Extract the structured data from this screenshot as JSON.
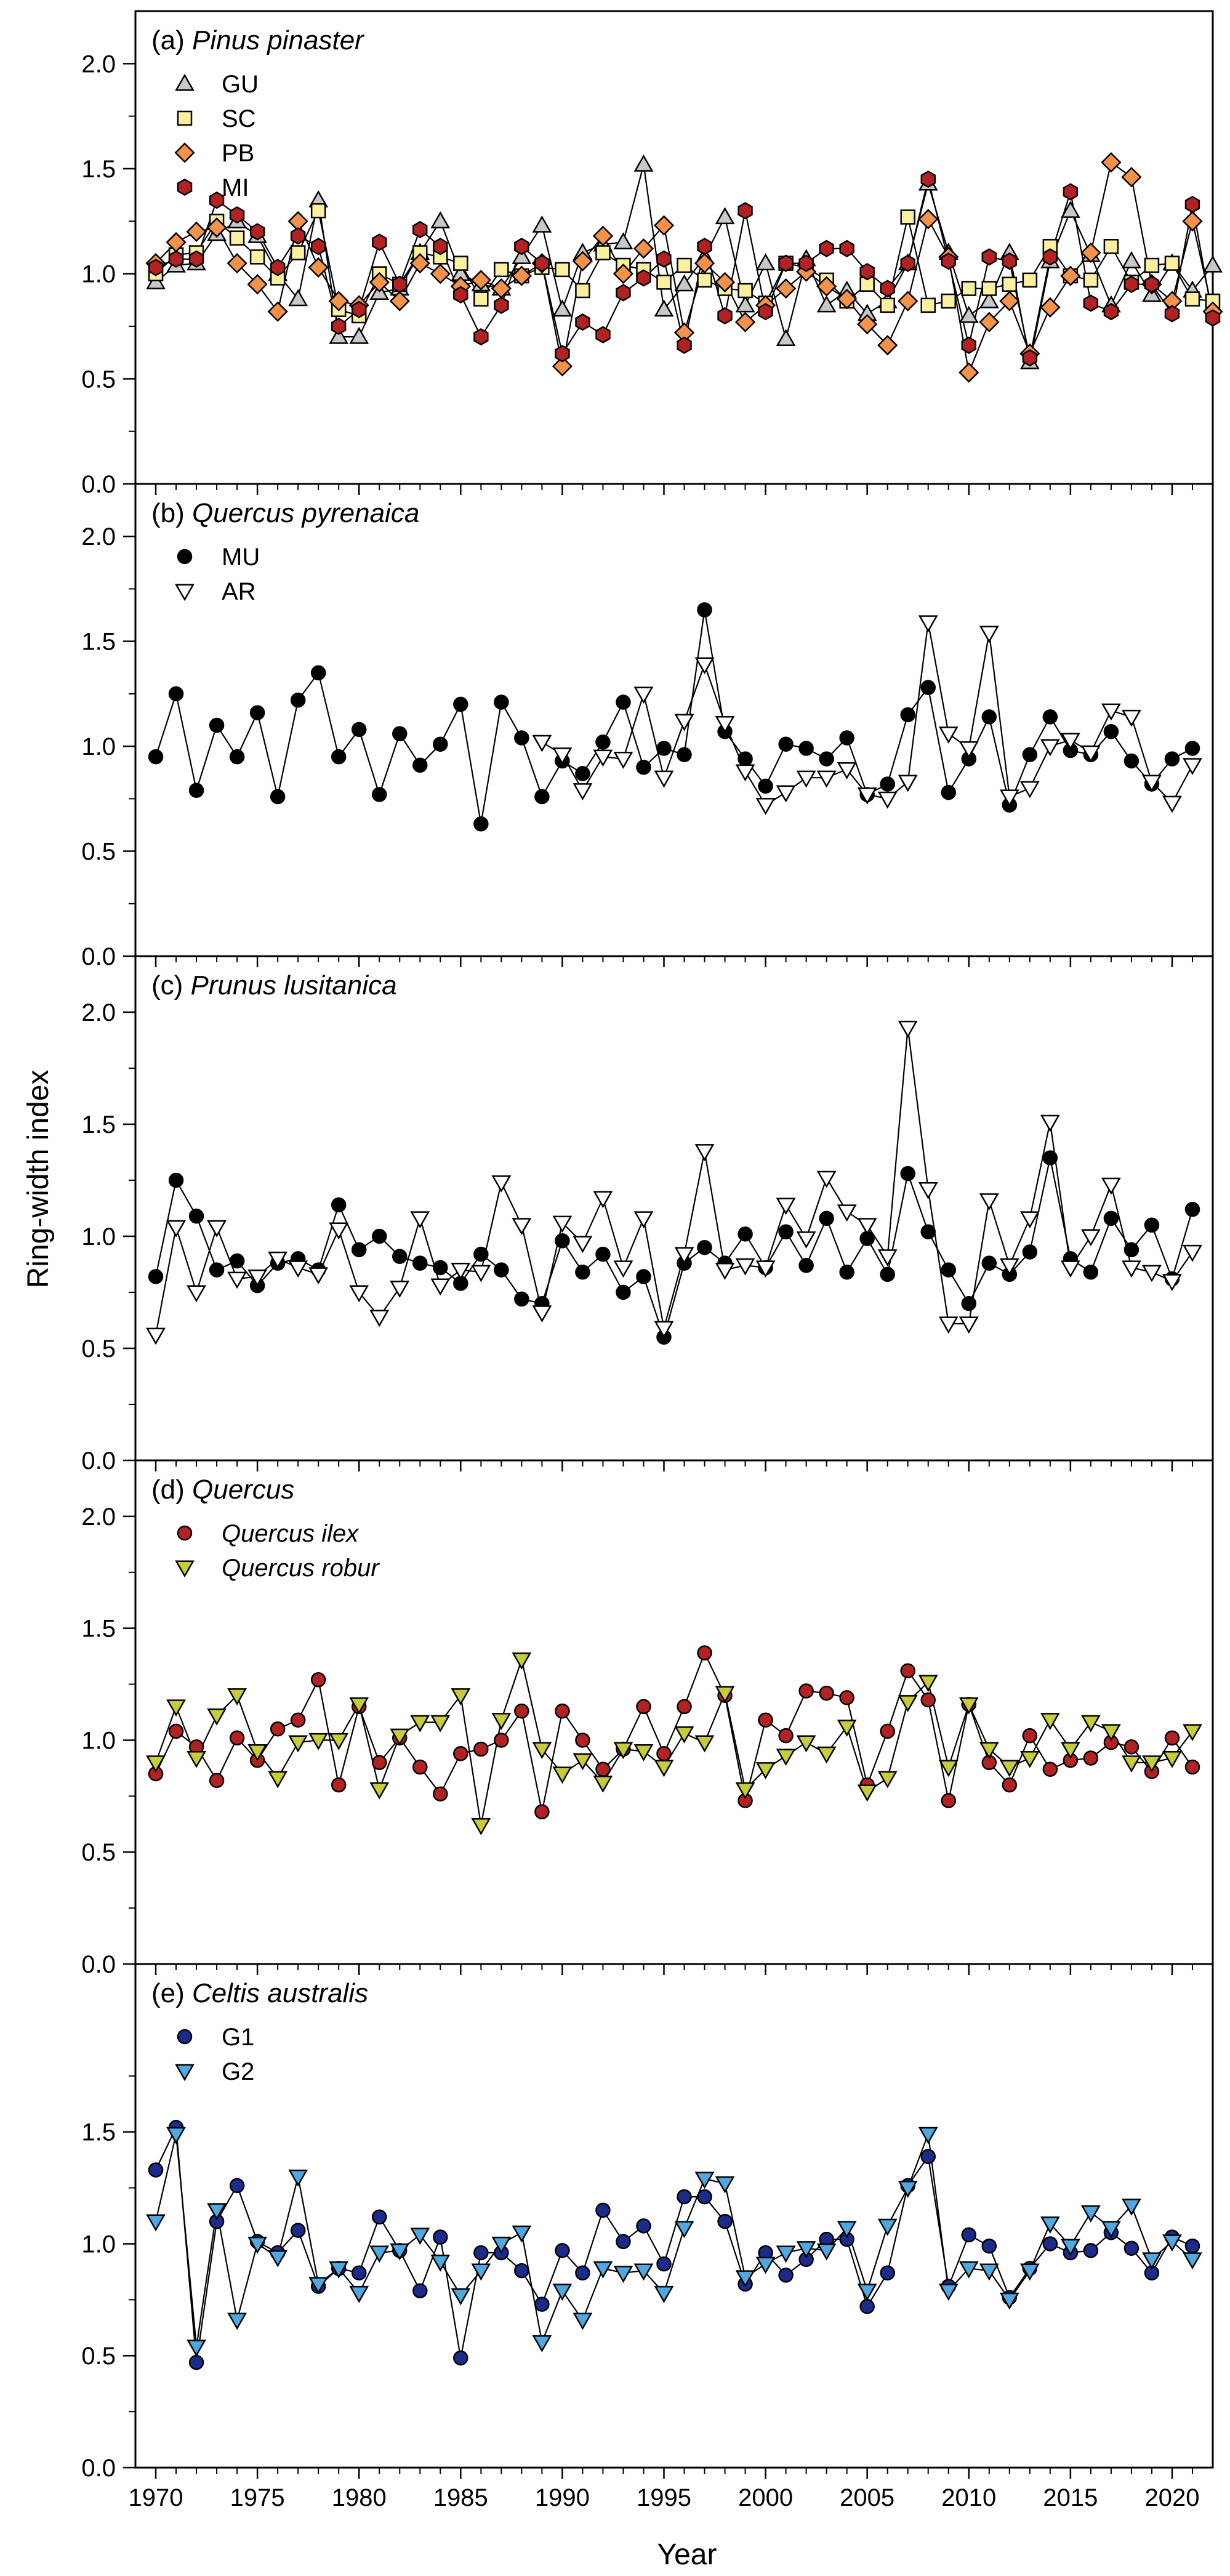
{
  "figure": {
    "ylabel": "Ring-width index",
    "xlabel": "Year"
  },
  "chart_data": [
    {
      "type": "line",
      "title_prefix": "(a)",
      "title_species": "Pinus pinaster",
      "ylim": [
        0,
        2.25
      ],
      "yticks": [
        "0.0",
        "0.5",
        "1.0",
        "1.5",
        "2.0"
      ],
      "xlim": [
        1969,
        2022
      ],
      "xticks": [
        "1970",
        "1975",
        "1980",
        "1985",
        "1990",
        "1995",
        "2000",
        "2005",
        "2010",
        "2015",
        "2020"
      ],
      "legend_position": "top-left",
      "series": [
        {
          "name": "GU",
          "marker": "triangle-up",
          "color": "#c8c8c8",
          "italic": false,
          "start": 1970,
          "values": [
            0.96,
            1.04,
            1.05,
            1.19,
            1.25,
            1.18,
            1.0,
            0.88,
            1.35,
            0.7,
            0.7,
            0.91,
            0.93,
            1.1,
            1.25,
            1.0,
            0.95,
            0.93,
            1.08,
            1.23,
            0.83,
            1.1,
            1.14,
            1.15,
            1.52,
            0.83,
            0.95,
            1.08,
            1.27,
            0.85,
            1.05,
            0.69,
            1.07,
            0.85,
            0.92,
            0.81,
            0.87,
            1.05,
            1.43,
            1.1,
            0.8,
            0.87,
            1.1,
            0.58,
            1.06,
            1.3,
            1.09,
            0.85,
            1.06,
            0.9,
            1.05,
            0.92,
            1.04
          ]
        },
        {
          "name": "SC",
          "marker": "square",
          "color": "#fbf0a0",
          "italic": false,
          "start": 1970,
          "values": [
            1.0,
            1.09,
            1.1,
            1.25,
            1.17,
            1.08,
            0.98,
            1.1,
            1.3,
            0.83,
            0.8,
            1.0,
            0.95,
            1.1,
            1.08,
            1.05,
            0.88,
            1.02,
            0.99,
            1.03,
            1.02,
            0.92,
            1.1,
            1.04,
            1.02,
            0.96,
            1.04,
            0.97,
            0.93,
            0.92,
            0.86,
            1.05,
            1.03,
            0.97,
            0.87,
            0.95,
            0.85,
            1.27,
            0.85,
            0.87,
            0.93,
            0.93,
            0.95,
            0.97,
            1.13,
            0.99,
            0.97,
            1.13,
            0.96,
            1.04,
            1.05,
            0.88,
            0.87
          ]
        },
        {
          "name": "PB",
          "marker": "diamond",
          "color": "#f4924a",
          "italic": false,
          "start": 1970,
          "values": [
            1.05,
            1.15,
            1.2,
            1.22,
            1.05,
            0.95,
            0.82,
            1.25,
            1.03,
            0.87,
            0.85,
            0.96,
            0.87,
            1.05,
            1.0,
            0.94,
            0.97,
            0.93,
            0.99,
            1.05,
            0.56,
            1.06,
            1.18,
            1.0,
            1.12,
            1.23,
            0.72,
            1.05,
            0.96,
            0.77,
            0.85,
            0.93,
            1.01,
            0.94,
            0.88,
            0.76,
            0.66,
            0.87,
            1.26,
            1.08,
            0.53,
            0.77,
            0.87,
            0.62,
            0.84,
            0.99,
            1.1,
            1.53,
            1.46,
            0.95,
            0.87,
            1.25,
            0.82
          ]
        },
        {
          "name": "MI",
          "marker": "hexagon",
          "color": "#b22222",
          "italic": false,
          "start": 1970,
          "values": [
            1.03,
            1.07,
            1.07,
            1.35,
            1.28,
            1.2,
            1.03,
            1.18,
            1.13,
            0.75,
            0.83,
            1.15,
            0.95,
            1.21,
            1.13,
            0.9,
            0.7,
            0.85,
            1.13,
            1.05,
            0.62,
            0.77,
            0.71,
            0.91,
            0.98,
            1.07,
            0.66,
            1.13,
            0.8,
            1.3,
            0.82,
            1.05,
            1.05,
            1.12,
            1.12,
            1.01,
            0.93,
            1.05,
            1.45,
            1.06,
            0.66,
            1.08,
            1.06,
            0.6,
            1.08,
            1.39,
            0.86,
            0.82,
            0.95,
            0.95,
            0.81,
            1.33,
            0.79
          ]
        }
      ]
    },
    {
      "type": "line",
      "title_prefix": "(b)",
      "title_species": "Quercus pyrenaica",
      "ylim": [
        0,
        2.25
      ],
      "yticks": [
        "0.0",
        "0.5",
        "1.0",
        "1.5",
        "2.0"
      ],
      "xlim": [
        1969,
        2022
      ],
      "xticks": [
        "1970",
        "1975",
        "1980",
        "1985",
        "1990",
        "1995",
        "2000",
        "2005",
        "2010",
        "2015",
        "2020"
      ],
      "legend_position": "top-left",
      "series": [
        {
          "name": "MU",
          "marker": "circle",
          "color": "#000000",
          "italic": false,
          "start": 1970,
          "values": [
            0.95,
            1.25,
            0.79,
            1.1,
            0.95,
            1.16,
            0.76,
            1.22,
            1.35,
            0.95,
            1.08,
            0.77,
            1.06,
            0.91,
            1.01,
            1.2,
            0.63,
            1.21,
            1.04,
            0.76,
            0.93,
            0.87,
            1.02,
            1.21,
            0.9,
            0.99,
            0.96,
            1.65,
            1.07,
            0.94,
            0.81,
            1.01,
            0.99,
            0.94,
            1.04,
            0.77,
            0.82,
            1.15,
            1.28,
            0.78,
            0.94,
            1.14,
            0.72,
            0.96,
            1.14,
            0.98,
            0.96,
            1.07,
            0.93,
            0.82,
            0.94,
            0.99
          ]
        },
        {
          "name": "AR",
          "marker": "triangle-down",
          "color": "#ffffff",
          "italic": false,
          "start": 1989,
          "values": [
            1.02,
            0.96,
            0.79,
            0.95,
            0.94,
            1.25,
            0.85,
            1.12,
            1.39,
            1.11,
            0.88,
            0.72,
            0.78,
            0.85,
            0.85,
            0.89,
            0.77,
            0.75,
            0.83,
            1.59,
            1.06,
            0.99,
            1.54,
            0.76,
            0.8,
            1.0,
            1.03,
            0.97,
            1.17,
            1.14,
            0.83,
            0.73,
            0.91
          ]
        }
      ]
    },
    {
      "type": "line",
      "title_prefix": "(c)",
      "title_species": "Prunus lusitanica",
      "ylim": [
        0,
        2.25
      ],
      "yticks": [
        "0.0",
        "0.5",
        "1.0",
        "1.5",
        "2.0"
      ],
      "xlim": [
        1969,
        2022
      ],
      "xticks": [
        "1970",
        "1975",
        "1980",
        "1985",
        "1990",
        "1995",
        "2000",
        "2005",
        "2010",
        "2015",
        "2020"
      ],
      "legend_position": "none",
      "series": [
        {
          "name": "black circles",
          "marker": "circle",
          "color": "#000000",
          "italic": false,
          "start": 1970,
          "show_in_legend": false,
          "values": [
            0.82,
            1.25,
            1.09,
            0.85,
            0.89,
            0.78,
            0.88,
            0.9,
            0.85,
            1.14,
            0.94,
            1.0,
            0.91,
            0.88,
            0.86,
            0.79,
            0.92,
            0.85,
            0.72,
            0.7,
            0.98,
            0.84,
            0.92,
            0.75,
            0.82,
            0.55,
            0.88,
            0.95,
            0.88,
            1.01,
            0.86,
            1.02,
            0.87,
            1.08,
            0.84,
            0.99,
            0.83,
            1.28,
            1.02,
            0.85,
            0.7,
            0.88,
            0.83,
            0.93,
            1.35,
            0.9,
            0.84,
            1.08,
            0.94,
            1.05,
            0.81,
            1.12
          ]
        },
        {
          "name": "white triangles",
          "marker": "triangle-down",
          "color": "#ffffff",
          "italic": false,
          "start": 1970,
          "show_in_legend": false,
          "values": [
            0.56,
            1.04,
            0.75,
            1.04,
            0.81,
            0.82,
            0.9,
            0.86,
            0.83,
            1.03,
            0.75,
            0.64,
            0.77,
            1.08,
            0.78,
            0.85,
            0.84,
            1.24,
            1.05,
            0.66,
            1.06,
            0.97,
            1.17,
            0.86,
            1.08,
            0.59,
            0.92,
            1.38,
            0.85,
            0.87,
            0.86,
            1.14,
            0.99,
            1.26,
            1.11,
            1.05,
            0.91,
            1.93,
            1.21,
            0.61,
            0.61,
            1.16,
            0.87,
            1.08,
            1.51,
            0.86,
            1.0,
            1.23,
            0.86,
            0.84,
            0.8,
            0.93
          ]
        }
      ]
    },
    {
      "type": "line",
      "title_prefix": "(d)",
      "title_species": "Quercus",
      "ylim": [
        0,
        2.25
      ],
      "yticks": [
        "0.0",
        "0.5",
        "1.0",
        "1.5",
        "2.0"
      ],
      "xlim": [
        1969,
        2022
      ],
      "xticks": [
        "1970",
        "1975",
        "1980",
        "1985",
        "1990",
        "1995",
        "2000",
        "2005",
        "2010",
        "2015",
        "2020"
      ],
      "legend_position": "top-left",
      "series": [
        {
          "name": "Quercus ilex",
          "marker": "circle",
          "color": "#b22222",
          "italic": true,
          "start": 1970,
          "values": [
            0.85,
            1.04,
            0.97,
            0.82,
            1.01,
            0.91,
            1.05,
            1.09,
            1.27,
            0.8,
            1.15,
            0.9,
            1.01,
            0.88,
            0.76,
            0.94,
            0.96,
            1.0,
            1.13,
            0.68,
            1.13,
            1.0,
            0.87,
            0.96,
            1.15,
            0.94,
            1.15,
            1.39,
            1.2,
            0.73,
            1.09,
            1.02,
            1.22,
            1.21,
            1.19,
            0.8,
            1.04,
            1.31,
            1.18,
            0.73,
            1.16,
            0.9,
            0.8,
            1.02,
            0.87,
            0.91,
            0.92,
            0.99,
            0.97,
            0.86,
            1.01,
            0.88
          ]
        },
        {
          "name": "Quercus robur",
          "marker": "triangle-down",
          "color": "#c6cc3a",
          "italic": true,
          "start": 1970,
          "values": [
            0.9,
            1.15,
            0.92,
            1.11,
            1.2,
            0.95,
            0.83,
            0.99,
            1.0,
            1.0,
            1.16,
            0.78,
            1.02,
            1.08,
            1.08,
            1.2,
            0.62,
            1.09,
            1.36,
            0.96,
            0.85,
            0.91,
            0.81,
            0.96,
            0.95,
            0.88,
            1.03,
            0.99,
            1.21,
            0.78,
            0.87,
            0.93,
            0.99,
            0.94,
            1.06,
            0.77,
            0.83,
            1.17,
            1.26,
            0.88,
            1.16,
            0.96,
            0.88,
            0.92,
            1.09,
            0.96,
            1.08,
            1.04,
            0.9,
            0.9,
            0.92,
            1.04
          ]
        }
      ]
    },
    {
      "type": "line",
      "title_prefix": "(e)",
      "title_species": "Celtis australis",
      "ylim": [
        0,
        2.25
      ],
      "yticks": [
        "0.0",
        "0.5",
        "1.0",
        "1.5"
      ],
      "xlim": [
        1969,
        2022
      ],
      "xticks": [
        "1970",
        "1975",
        "1980",
        "1985",
        "1990",
        "1995",
        "2000",
        "2005",
        "2010",
        "2015",
        "2020"
      ],
      "legend_position": "top-left",
      "series": [
        {
          "name": "G1",
          "marker": "circle",
          "color": "#1c2a8c",
          "italic": false,
          "start": 1970,
          "values": [
            1.33,
            1.52,
            0.47,
            1.1,
            1.26,
            1.01,
            0.96,
            1.06,
            0.81,
            0.89,
            0.87,
            1.12,
            0.97,
            0.79,
            1.03,
            0.49,
            0.96,
            0.96,
            0.88,
            0.73,
            0.97,
            0.87,
            1.15,
            1.01,
            1.08,
            0.91,
            1.21,
            1.21,
            1.1,
            0.82,
            0.96,
            0.86,
            0.93,
            1.02,
            1.02,
            0.72,
            0.87,
            1.26,
            1.39,
            0.81,
            1.04,
            0.99,
            0.76,
            0.89,
            1.0,
            0.96,
            0.97,
            1.05,
            0.98,
            0.87,
            1.03,
            0.99
          ]
        },
        {
          "name": "G2",
          "marker": "triangle-down",
          "color": "#4fa8e0",
          "italic": false,
          "start": 1970,
          "values": [
            1.1,
            1.49,
            0.54,
            1.15,
            0.66,
            1.0,
            0.94,
            1.3,
            0.82,
            0.89,
            0.78,
            0.96,
            0.97,
            1.04,
            0.92,
            0.77,
            0.88,
            1.0,
            1.05,
            0.56,
            0.79,
            0.66,
            0.89,
            0.87,
            0.88,
            0.78,
            1.07,
            1.29,
            1.27,
            0.85,
            0.91,
            0.96,
            0.98,
            0.97,
            1.07,
            0.79,
            1.08,
            1.25,
            1.49,
            0.79,
            0.89,
            0.88,
            0.75,
            0.88,
            1.09,
            0.99,
            1.14,
            1.07,
            1.17,
            0.93,
            1.01,
            0.93
          ]
        }
      ]
    }
  ]
}
